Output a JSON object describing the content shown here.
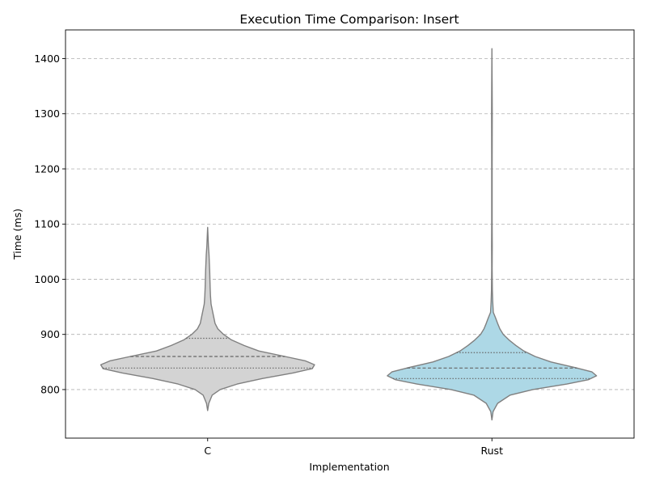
{
  "chart_data": {
    "type": "violin",
    "title": "Execution Time Comparison: Insert",
    "xlabel": "Implementation",
    "ylabel": "Time (ms)",
    "categories": [
      "C",
      "Rust"
    ],
    "ylim": [
      712,
      1452
    ],
    "yticks": [
      800,
      900,
      1000,
      1100,
      1200,
      1300,
      1400
    ],
    "grid": "y-dashed",
    "violins": [
      {
        "category": "C",
        "color": "#d3d3d3",
        "edge_color": "#808080",
        "min": 762,
        "max": 1094,
        "quartiles": [
          839,
          860,
          893
        ],
        "half_width_profile": [
          [
            762,
            0.0
          ],
          [
            775,
            0.01
          ],
          [
            790,
            0.04
          ],
          [
            800,
            0.11
          ],
          [
            810,
            0.26
          ],
          [
            820,
            0.48
          ],
          [
            830,
            0.75
          ],
          [
            838,
            0.92
          ],
          [
            845,
            0.94
          ],
          [
            852,
            0.86
          ],
          [
            860,
            0.68
          ],
          [
            870,
            0.45
          ],
          [
            880,
            0.32
          ],
          [
            890,
            0.21
          ],
          [
            900,
            0.14
          ],
          [
            910,
            0.09
          ],
          [
            920,
            0.065
          ],
          [
            935,
            0.05
          ],
          [
            945,
            0.04
          ],
          [
            955,
            0.03
          ],
          [
            970,
            0.025
          ],
          [
            985,
            0.022
          ],
          [
            1000,
            0.02
          ],
          [
            1015,
            0.018
          ],
          [
            1030,
            0.015
          ],
          [
            1045,
            0.012
          ],
          [
            1060,
            0.007
          ],
          [
            1075,
            0.004
          ],
          [
            1094,
            0.0
          ]
        ]
      },
      {
        "category": "Rust",
        "color": "#add8e6",
        "edge_color": "#808080",
        "min": 745,
        "max": 1418,
        "quartiles": [
          820,
          839,
          867
        ],
        "half_width_profile": [
          [
            745,
            0.0
          ],
          [
            760,
            0.01
          ],
          [
            775,
            0.05
          ],
          [
            790,
            0.16
          ],
          [
            800,
            0.36
          ],
          [
            810,
            0.66
          ],
          [
            818,
            0.85
          ],
          [
            825,
            0.92
          ],
          [
            832,
            0.88
          ],
          [
            840,
            0.73
          ],
          [
            850,
            0.52
          ],
          [
            860,
            0.38
          ],
          [
            870,
            0.28
          ],
          [
            880,
            0.21
          ],
          [
            890,
            0.15
          ],
          [
            900,
            0.1
          ],
          [
            910,
            0.07
          ],
          [
            920,
            0.05
          ],
          [
            930,
            0.032
          ],
          [
            940,
            0.012
          ],
          [
            960,
            0.007
          ],
          [
            980,
            0.004
          ],
          [
            1000,
            0.003
          ],
          [
            1020,
            0.002
          ],
          [
            1060,
            0.003
          ],
          [
            1100,
            0.002
          ],
          [
            1200,
            0.002
          ],
          [
            1300,
            0.003
          ],
          [
            1350,
            0.002
          ],
          [
            1418,
            0.0
          ]
        ]
      }
    ]
  }
}
